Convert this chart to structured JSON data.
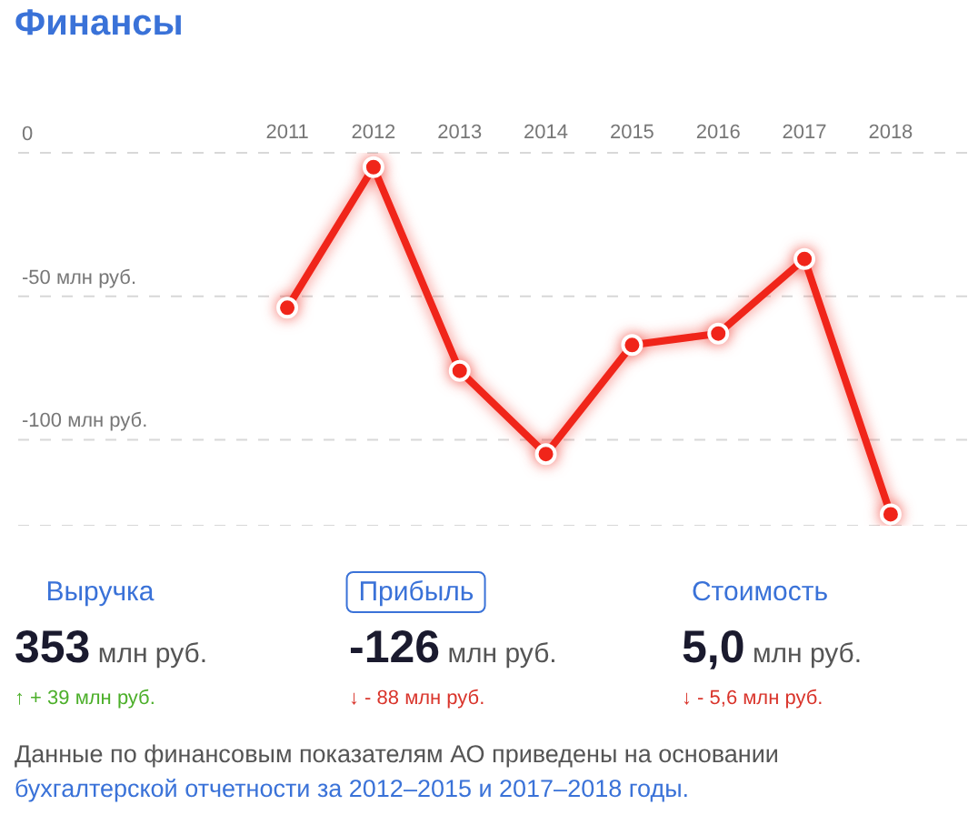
{
  "chart_data": [
    {
      "type": "line",
      "title": "Финансы",
      "categories": [
        "2011",
        "2012",
        "2013",
        "2014",
        "2015",
        "2016",
        "2017",
        "2018"
      ],
      "series": [
        {
          "color": "#f0251a",
          "values": [
            -54,
            -5,
            -76,
            -105,
            -67,
            -63,
            -37,
            -126
          ]
        }
      ],
      "ylim": [
        -130,
        0
      ],
      "yticks": [
        0,
        {
          "value": -50,
          "label": "-50 млн руб."
        },
        {
          "value": -100,
          "label": "-100 млн руб."
        }
      ],
      "grid": "y",
      "legend": false,
      "marker": "circle",
      "line_style": "solid",
      "annotations": [
        "Данные по финансовым показателям АО приведены на основании",
        "бухгалтерской отчетности за 2012–2015 и 2017–2018 годы."
      ]
    },
    {
      "type": "other",
      "annotations": [
        "Выручка",
        "353",
        "млн руб.",
        "↑ + 39 млн руб.",
        "Прибыль",
        "-126",
        "млн руб.",
        "↓ - 88 млн руб.",
        "Стоимость",
        "5,0",
        "млн руб.",
        "↓ - 5,6 млн руб."
      ]
    }
  ]
}
